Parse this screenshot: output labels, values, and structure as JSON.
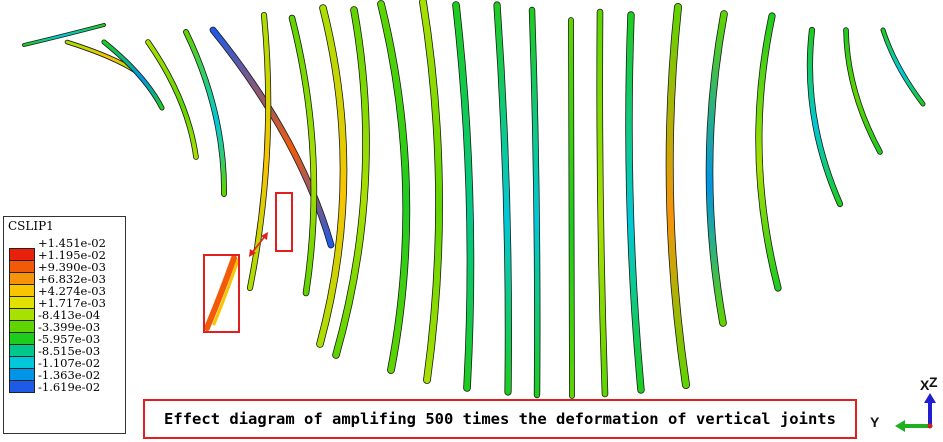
{
  "legend": {
    "title": "CSLIP1",
    "labels": [
      "+1.451e-02",
      "+1.195e-02",
      "+9.390e-03",
      "+6.832e-03",
      "+4.274e-03",
      "+1.717e-03",
      "-8.413e-04",
      "-3.399e-03",
      "-5.957e-03",
      "-8.515e-03",
      "-1.107e-02",
      "-1.363e-02",
      "-1.619e-02"
    ],
    "colors": [
      "#e8200c",
      "#f25a0a",
      "#f7930a",
      "#f9c400",
      "#e2e000",
      "#a8e000",
      "#5fd400",
      "#1ecc1e",
      "#00c88a",
      "#00c8d8",
      "#0095e6",
      "#1e5ae8",
      "#2222d8"
    ]
  },
  "caption": "Effect diagram of amplifing 500 times the deformation of vertical joints",
  "triad": {
    "y_label": "Y",
    "x_label": "X",
    "z_label": "Z",
    "y_color": "#1fb01f",
    "z_color": "#1f1fd0",
    "x_color": "#d01f1f"
  },
  "highlight_color": "#e0201f",
  "joints": [
    {
      "color": "#1ecc1e",
      "accent": "#00c8d8"
    },
    {
      "color": "#a8e000",
      "accent": "#f9c400"
    },
    {
      "color": "#1ecc1e",
      "accent": "#0095e6"
    },
    {
      "color": "#a8e000",
      "accent": "#5fd400"
    },
    {
      "color": "#5fd400",
      "accent": "#00c8d8"
    },
    {
      "color": "#1e5ae8",
      "accent": "#f25a0a"
    },
    {
      "color": "#a8e000",
      "accent": "#f9c400"
    },
    {
      "color": "#5fd400",
      "accent": "#a8e000"
    },
    {
      "color": "#a8e000",
      "accent": "#f9c400"
    },
    {
      "color": "#5fd400",
      "accent": "#a8e000"
    },
    {
      "color": "#5fd400",
      "accent": "#1ecc1e"
    },
    {
      "color": "#a8e000",
      "accent": "#5fd400"
    },
    {
      "color": "#1ecc1e",
      "accent": "#00c88a"
    },
    {
      "color": "#1ecc1e",
      "accent": "#00c8d8"
    },
    {
      "color": "#1ecc1e",
      "accent": "#00c8d8"
    },
    {
      "color": "#5fd400",
      "accent": "#1ecc1e"
    },
    {
      "color": "#5fd400",
      "accent": "#a8e000"
    },
    {
      "color": "#1ecc1e",
      "accent": "#00c8d8"
    },
    {
      "color": "#5fd400",
      "accent": "#f7930a"
    },
    {
      "color": "#5fd400",
      "accent": "#0095e6"
    },
    {
      "color": "#1ecc1e",
      "accent": "#a8e000"
    },
    {
      "color": "#1ecc1e",
      "accent": "#00c8d8"
    },
    {
      "color": "#1ecc1e",
      "accent": "#5fd400"
    },
    {
      "color": "#1ecc1e",
      "accent": "#00c8d8"
    }
  ]
}
